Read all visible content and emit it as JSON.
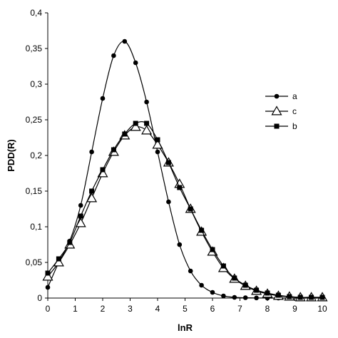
{
  "chart_data": {
    "type": "line",
    "title": "",
    "xlabel": "lnR",
    "ylabel": "PDD(R)",
    "xlim": [
      0,
      10
    ],
    "ylim": [
      0,
      0.4
    ],
    "x_ticks": [
      "0",
      "1",
      "2",
      "3",
      "4",
      "5",
      "6",
      "7",
      "8",
      "9",
      "10"
    ],
    "y_ticks": [
      "0",
      "0,05",
      "0,1",
      "0,15",
      "0,2",
      "0,25",
      "0,3",
      "0,35",
      "0,4"
    ],
    "grid": false,
    "legend_position": "right",
    "series": [
      {
        "name": "a",
        "marker": "circle",
        "color": "#000000",
        "x": [
          0,
          0.4,
          0.8,
          1.2,
          1.6,
          2.0,
          2.4,
          2.8,
          3.2,
          3.6,
          4.0,
          4.4,
          4.8,
          5.2,
          5.6,
          6.0,
          6.4,
          6.8,
          7.2,
          7.6,
          8.0,
          8.4,
          8.8,
          9.2,
          9.6,
          10.0
        ],
        "y": [
          0.015,
          0.05,
          0.08,
          0.13,
          0.205,
          0.28,
          0.34,
          0.36,
          0.33,
          0.275,
          0.205,
          0.135,
          0.075,
          0.038,
          0.018,
          0.008,
          0.003,
          0.001,
          0.0005,
          0.0002,
          0,
          0,
          0,
          0,
          0,
          0
        ]
      },
      {
        "name": "c",
        "marker": "triangle-open",
        "color": "#000000",
        "x": [
          0,
          0.4,
          0.8,
          1.2,
          1.6,
          2.0,
          2.4,
          2.8,
          3.2,
          3.6,
          4.0,
          4.4,
          4.8,
          5.2,
          5.6,
          6.0,
          6.4,
          6.8,
          7.2,
          7.6,
          8.0,
          8.4,
          8.8,
          9.2,
          9.6,
          10.0
        ],
        "y": [
          0.03,
          0.05,
          0.075,
          0.105,
          0.14,
          0.175,
          0.205,
          0.228,
          0.24,
          0.235,
          0.215,
          0.19,
          0.16,
          0.125,
          0.093,
          0.065,
          0.042,
          0.027,
          0.017,
          0.01,
          0.006,
          0.003,
          0.002,
          0.001,
          0.001,
          0.001
        ]
      },
      {
        "name": "b",
        "marker": "square",
        "color": "#000000",
        "x": [
          0,
          0.4,
          0.8,
          1.2,
          1.6,
          2.0,
          2.4,
          2.8,
          3.2,
          3.6,
          4.0,
          4.4,
          4.8,
          5.2,
          5.6,
          6.0,
          6.4,
          6.8,
          7.2,
          7.6,
          8.0,
          8.4,
          8.8,
          9.2,
          9.6,
          10.0
        ],
        "y": [
          0.035,
          0.055,
          0.078,
          0.115,
          0.15,
          0.18,
          0.208,
          0.23,
          0.245,
          0.245,
          0.222,
          0.19,
          0.155,
          0.125,
          0.095,
          0.068,
          0.045,
          0.028,
          0.018,
          0.011,
          0.007,
          0.004,
          0.002,
          0.001,
          0.001,
          0.001
        ]
      }
    ]
  }
}
